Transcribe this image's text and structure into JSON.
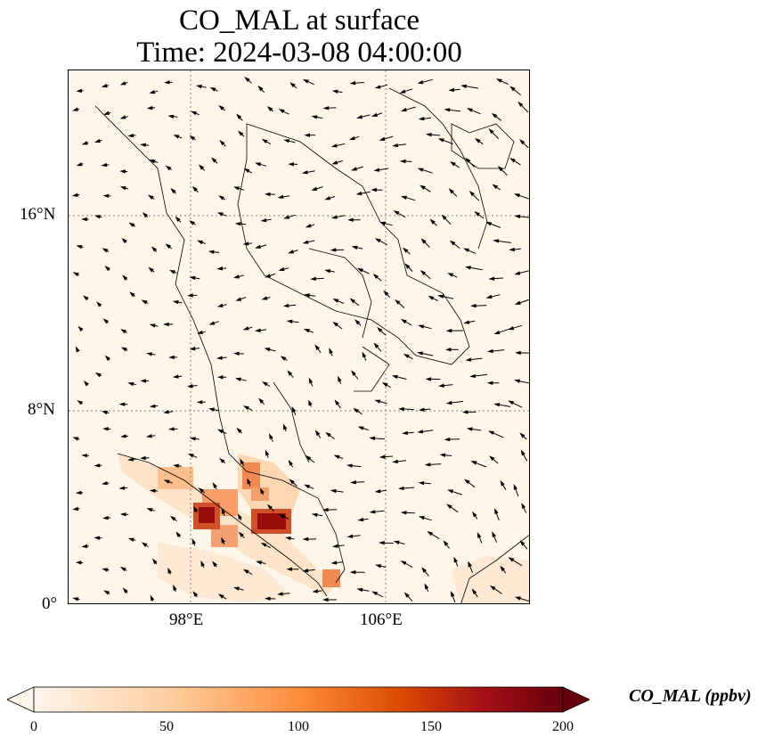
{
  "title": {
    "line1": "CO_MAL at surface",
    "line2": "Time: 2024-03-08 04:00:00"
  },
  "map": {
    "lat_labels": [
      "16°N",
      "8°N",
      "0°"
    ],
    "lon_labels": [
      "98°E",
      "106°E"
    ],
    "gridlines": "dotted",
    "field_variable": "CO_MAL",
    "wind_vectors": "shown"
  },
  "colorbar": {
    "label": "CO_MAL (ppbv)",
    "ticks": [
      "0",
      "50",
      "100",
      "150",
      "200"
    ],
    "min": 0,
    "max": 200,
    "extend": "both",
    "colormap": [
      "#fff5eb",
      "#fdd0a2",
      "#fd8d3c",
      "#d94801",
      "#a50f15",
      "#67000d"
    ]
  },
  "colors": {
    "background_field": "#fef6e9",
    "coastline": "#000000",
    "grid": "#808080"
  }
}
